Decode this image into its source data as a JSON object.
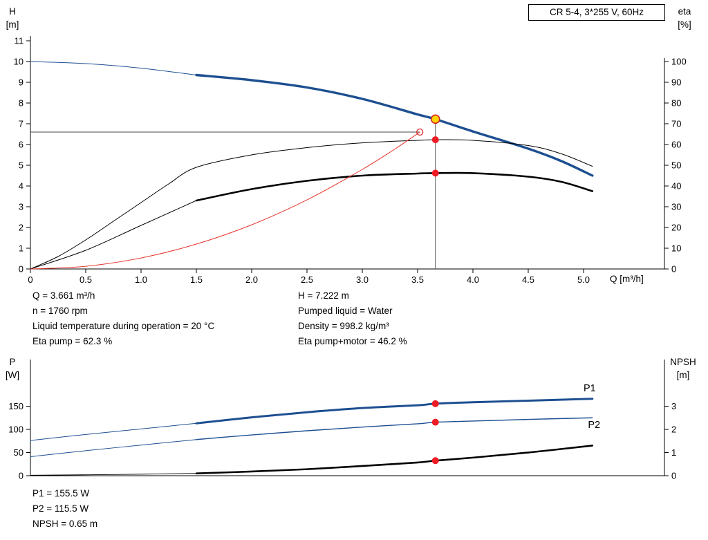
{
  "title_box": "CR 5-4, 3*255 V, 60Hz",
  "info_top": {
    "left": [
      "Q = 3.661 m³/h",
      "n = 1760 rpm",
      "Liquid temperature during operation = 20 °C",
      "Eta pump = 62.3 %"
    ],
    "right": [
      "H = 7.222 m",
      "Pumped liquid = Water",
      "Density = 998.2 kg/m³",
      "Eta pump+motor = 46.2 %"
    ]
  },
  "info_bottom": [
    "P1 = 155.5 W",
    "P2 = 115.5 W",
    "NPSH = 0.65 m"
  ],
  "colors": {
    "curve_blue": "#1d4f91",
    "curve_red": "#e5352b",
    "marker_red": "#ee1c25",
    "duty_yellow": "#ffd500",
    "duty_ring": "#d42027",
    "black": "#000000"
  },
  "chart_data": [
    {
      "type": "line",
      "title": "CR 5-4, 3*255 V, 60Hz",
      "x_axis": {
        "title": "Q [m³/h]",
        "min": 0,
        "max": 5.73,
        "tick_values": [
          0,
          0.5,
          1,
          1.5,
          2,
          2.5,
          3,
          3.5,
          4,
          4.5,
          5
        ],
        "tick_labels": [
          "0",
          "0.5",
          "1.0",
          "1.5",
          "2.0",
          "2.5",
          "3.0",
          "3.5",
          "4.0",
          "4.5",
          "5.0"
        ]
      },
      "left_axis": {
        "title": "H [m]",
        "title_lines": [
          "H",
          "[m]"
        ],
        "min": 0,
        "max": 11,
        "ticks": [
          0,
          1,
          2,
          3,
          4,
          5,
          6,
          7,
          8,
          9,
          10,
          11
        ]
      },
      "right_axis": {
        "title": "eta [%]",
        "title_lines": [
          "eta",
          "[%]"
        ],
        "min": 0,
        "max": 100,
        "ticks": [
          0,
          10,
          20,
          30,
          40,
          50,
          60,
          70,
          80,
          90,
          100
        ]
      },
      "series": [
        {
          "name": "H curve low-flow (thin)",
          "axis": "left",
          "color": "#1d4f91",
          "width": 1,
          "points": [
            [
              0,
              10.0
            ],
            [
              0.5,
              9.9
            ],
            [
              1.0,
              9.68
            ],
            [
              1.5,
              9.35
            ]
          ]
        },
        {
          "name": "H curve CR 5-4",
          "axis": "left",
          "color": "#1d4f91",
          "width": 3.4,
          "points": [
            [
              1.5,
              9.35
            ],
            [
              2.0,
              9.1
            ],
            [
              2.5,
              8.75
            ],
            [
              3.0,
              8.2
            ],
            [
              3.5,
              7.45
            ],
            [
              3.661,
              7.222
            ],
            [
              4.0,
              6.63
            ],
            [
              4.5,
              5.8
            ],
            [
              4.8,
              5.2
            ],
            [
              5.08,
              4.5
            ]
          ]
        },
        {
          "name": "Eta pump",
          "axis": "right",
          "color": "#000000",
          "width": 1,
          "points": [
            [
              0,
              0
            ],
            [
              0.25,
              6
            ],
            [
              0.5,
              14
            ],
            [
              0.75,
              23
            ],
            [
              1.0,
              32
            ],
            [
              1.25,
              41
            ],
            [
              1.5,
              49
            ],
            [
              2.0,
              55
            ],
            [
              2.5,
              58.5
            ],
            [
              3.0,
              60.8
            ],
            [
              3.5,
              62
            ],
            [
              3.661,
              62.3
            ],
            [
              4.0,
              62
            ],
            [
              4.5,
              59.5
            ],
            [
              4.8,
              55.5
            ],
            [
              5.08,
              49.5
            ]
          ]
        },
        {
          "name": "Eta pump+motor low-flow (thin)",
          "axis": "right",
          "color": "#000000",
          "width": 1,
          "points": [
            [
              0,
              0
            ],
            [
              0.5,
              9
            ],
            [
              1.0,
              21
            ],
            [
              1.5,
              33
            ]
          ]
        },
        {
          "name": "Eta pump+motor",
          "axis": "right",
          "color": "#000000",
          "width": 2.6,
          "points": [
            [
              1.5,
              33
            ],
            [
              2.0,
              38.5
            ],
            [
              2.5,
              42.5
            ],
            [
              3.0,
              45
            ],
            [
              3.5,
              46
            ],
            [
              3.661,
              46.2
            ],
            [
              4.0,
              46.2
            ],
            [
              4.5,
              44.5
            ],
            [
              4.8,
              42
            ],
            [
              5.08,
              37.5
            ]
          ]
        },
        {
          "name": "System duty curve",
          "axis": "left",
          "color": "#e5352b",
          "width": 1,
          "points": [
            [
              0,
              0
            ],
            [
              0.5,
              0.13
            ],
            [
              1.0,
              0.53
            ],
            [
              1.5,
              1.2
            ],
            [
              2.0,
              2.13
            ],
            [
              2.5,
              3.33
            ],
            [
              3.0,
              4.8
            ],
            [
              3.3,
              5.8
            ],
            [
              3.52,
              6.6
            ]
          ]
        }
      ],
      "ref_lines": [
        {
          "dir": "h",
          "value": 6.6,
          "axis": "left",
          "x_from": 0,
          "x_to": 3.52
        },
        {
          "dir": "v",
          "x": 3.661,
          "v_from": 0,
          "v_to": 7.05,
          "axis": "left"
        }
      ],
      "markers": [
        {
          "x": 3.661,
          "value": 7.222,
          "axis": "left",
          "type": "duty-point"
        },
        {
          "x": 3.661,
          "value": 62.3,
          "axis": "right",
          "type": "dot"
        },
        {
          "x": 3.661,
          "value": 46.2,
          "axis": "right",
          "type": "dot"
        },
        {
          "x": 3.52,
          "value": 6.6,
          "axis": "left",
          "type": "open"
        }
      ],
      "labels": []
    },
    {
      "type": "line",
      "title": "Power and NPSH",
      "x_axis": {
        "title": "",
        "min": 0,
        "max": 5.73,
        "tick_values": [],
        "tick_labels": []
      },
      "left_axis": {
        "title": "P [W]",
        "title_lines": [
          "P",
          "[W]"
        ],
        "min": 0,
        "max": 250,
        "ticks": [
          0,
          50,
          100,
          150
        ]
      },
      "right_axis": {
        "title": "NPSH [m]",
        "title_lines": [
          "NPSH",
          "[m]"
        ],
        "min": 0,
        "max": 5,
        "ticks": [
          0,
          1,
          2,
          3
        ]
      },
      "series": [
        {
          "name": "P1 low-flow (thin)",
          "axis": "left",
          "color": "#1d4f91",
          "width": 1,
          "points": [
            [
              0,
              76
            ],
            [
              0.5,
              89
            ],
            [
              1.0,
              101
            ],
            [
              1.5,
              113
            ]
          ]
        },
        {
          "name": "P1",
          "axis": "left",
          "color": "#1d4f91",
          "width": 3,
          "points": [
            [
              1.5,
              113
            ],
            [
              2.0,
              126
            ],
            [
              2.5,
              137
            ],
            [
              3.0,
              146
            ],
            [
              3.5,
              152
            ],
            [
              3.661,
              155.5
            ],
            [
              4.0,
              158.5
            ],
            [
              4.5,
              162
            ],
            [
              5.08,
              166
            ]
          ]
        },
        {
          "name": "P2 low-flow (thin)",
          "axis": "left",
          "color": "#1d4f91",
          "width": 1,
          "points": [
            [
              0,
              41
            ],
            [
              0.5,
              54
            ],
            [
              1.0,
              66
            ],
            [
              1.5,
              78
            ]
          ]
        },
        {
          "name": "P2",
          "axis": "left",
          "color": "#1d4f91",
          "width": 1.4,
          "points": [
            [
              1.5,
              78
            ],
            [
              2.0,
              88
            ],
            [
              2.5,
              97
            ],
            [
              3.0,
              105
            ],
            [
              3.5,
              112
            ],
            [
              3.661,
              115.5
            ],
            [
              4.0,
              118
            ],
            [
              4.5,
              121.5
            ],
            [
              5.08,
              125
            ]
          ]
        },
        {
          "name": "NPSH low-flow (thin)",
          "axis": "right",
          "color": "#000000",
          "width": 0.9,
          "points": [
            [
              0,
              0.02
            ],
            [
              0.75,
              0.05
            ],
            [
              1.5,
              0.1
            ]
          ]
        },
        {
          "name": "NPSH",
          "axis": "right",
          "color": "#000000",
          "width": 2.6,
          "points": [
            [
              1.5,
              0.1
            ],
            [
              2.0,
              0.18
            ],
            [
              2.5,
              0.28
            ],
            [
              3.0,
              0.42
            ],
            [
              3.5,
              0.57
            ],
            [
              3.661,
              0.65
            ],
            [
              4.0,
              0.78
            ],
            [
              4.5,
              1.0
            ],
            [
              5.08,
              1.3
            ]
          ]
        }
      ],
      "ref_lines": [],
      "markers": [
        {
          "x": 3.661,
          "value": 155.5,
          "axis": "left",
          "type": "dot"
        },
        {
          "x": 3.661,
          "value": 115.5,
          "axis": "left",
          "type": "dot"
        },
        {
          "x": 3.661,
          "value": 0.65,
          "axis": "right",
          "type": "dot"
        }
      ],
      "labels": [
        {
          "text": "P1",
          "x": 5.0,
          "value": 182,
          "axis": "left",
          "color": "#1d4f91"
        },
        {
          "text": "P2",
          "x": 5.04,
          "value": 103,
          "axis": "left",
          "color": "#1d4f91"
        }
      ]
    }
  ]
}
